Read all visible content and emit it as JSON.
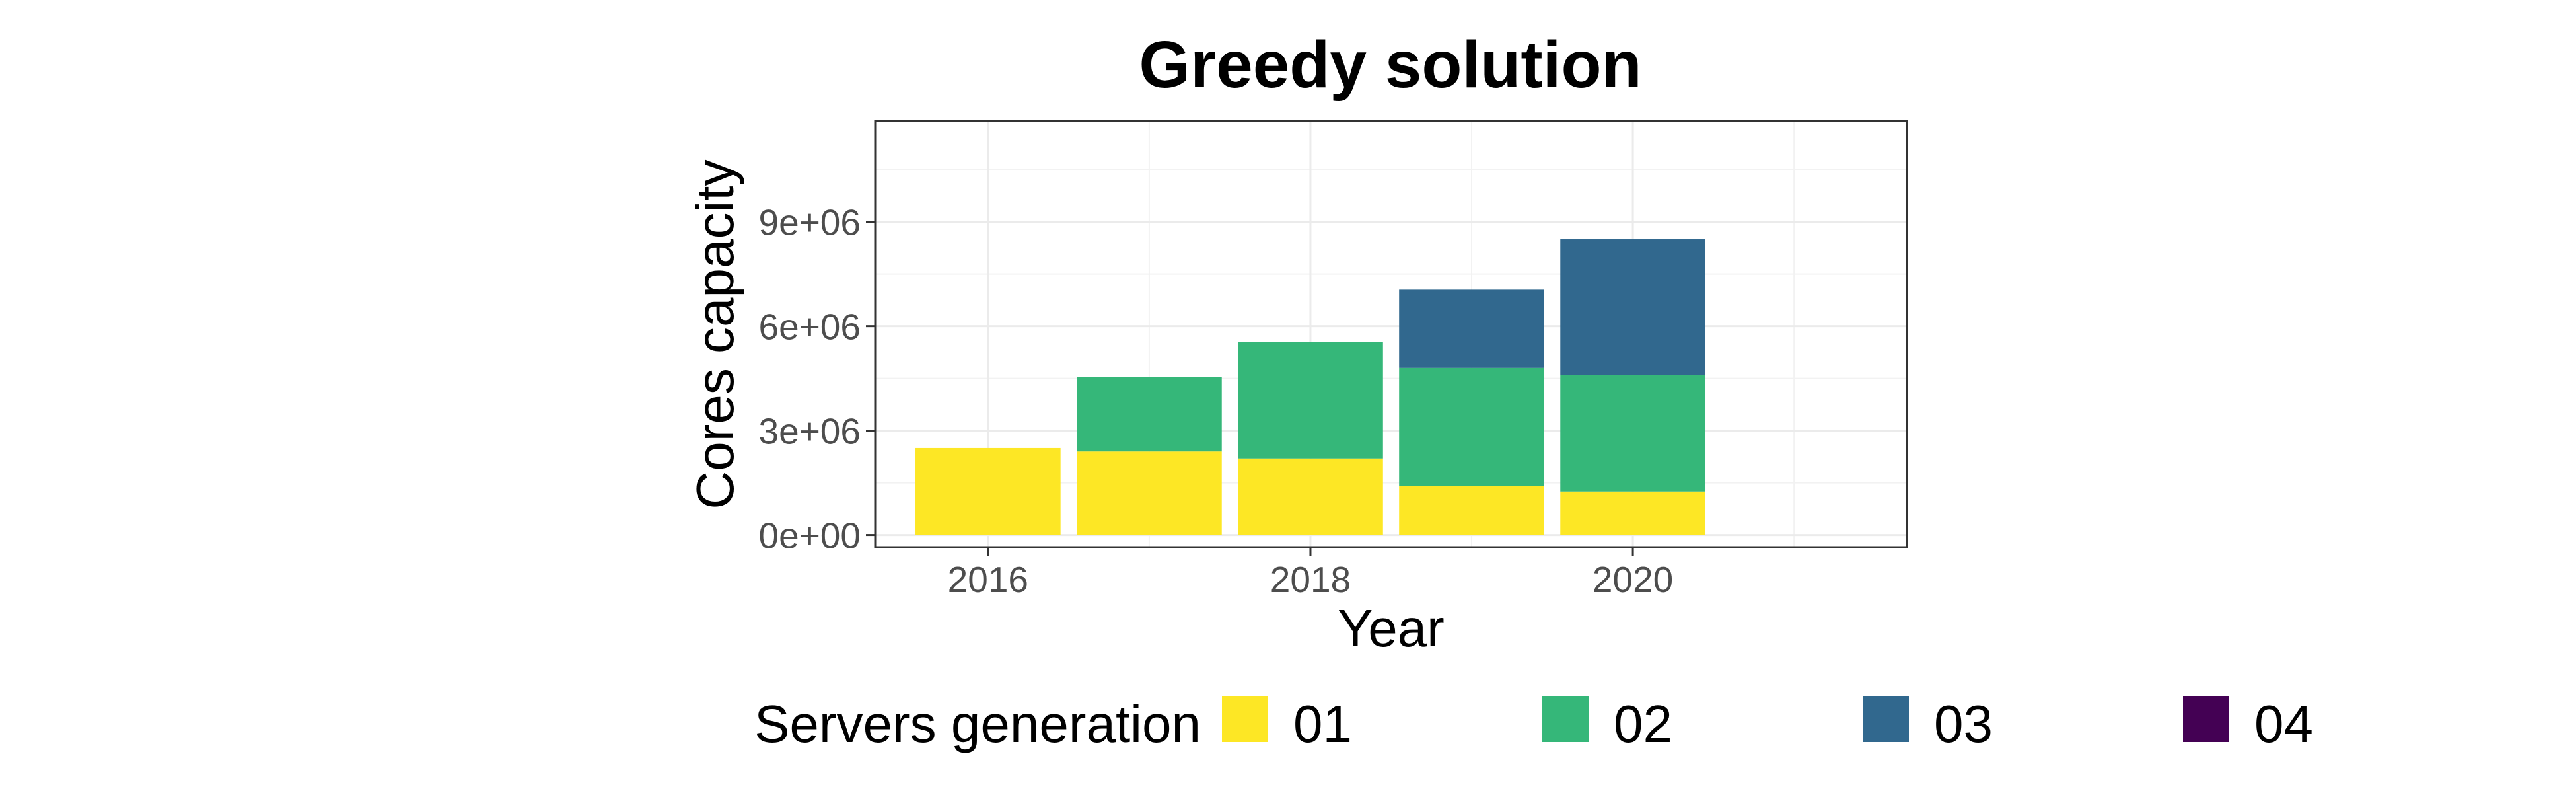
{
  "chart_data": {
    "type": "bar",
    "stacked": true,
    "title": "Greedy solution",
    "xlabel": "Year",
    "ylabel": "Cores capacity",
    "x": [
      2016,
      2017,
      2018,
      2019,
      2020
    ],
    "x_ticks": [
      "2016",
      "2018",
      "2020"
    ],
    "xlim": [
      2015.3,
      2021.7
    ],
    "ylim": [
      -350000,
      11900000
    ],
    "y_ticks": [
      0,
      3000000,
      6000000,
      9000000
    ],
    "y_tick_labels": [
      "0e+00",
      "3e+06",
      "6e+06",
      "9e+06"
    ],
    "grid": true,
    "legend_position": "bottom",
    "legend_title": "Servers generation",
    "series": [
      {
        "name": "01",
        "color": "#fde725",
        "values": [
          2500000,
          2400000,
          2200000,
          1400000,
          1250000
        ]
      },
      {
        "name": "02",
        "color": "#35b779",
        "values": [
          0,
          2150000,
          3350000,
          3400000,
          3350000
        ]
      },
      {
        "name": "03",
        "color": "#31688e",
        "values": [
          0,
          0,
          0,
          2250000,
          3900000
        ]
      },
      {
        "name": "04",
        "color": "#440154",
        "values": [
          0,
          0,
          0,
          0,
          0
        ]
      }
    ]
  }
}
